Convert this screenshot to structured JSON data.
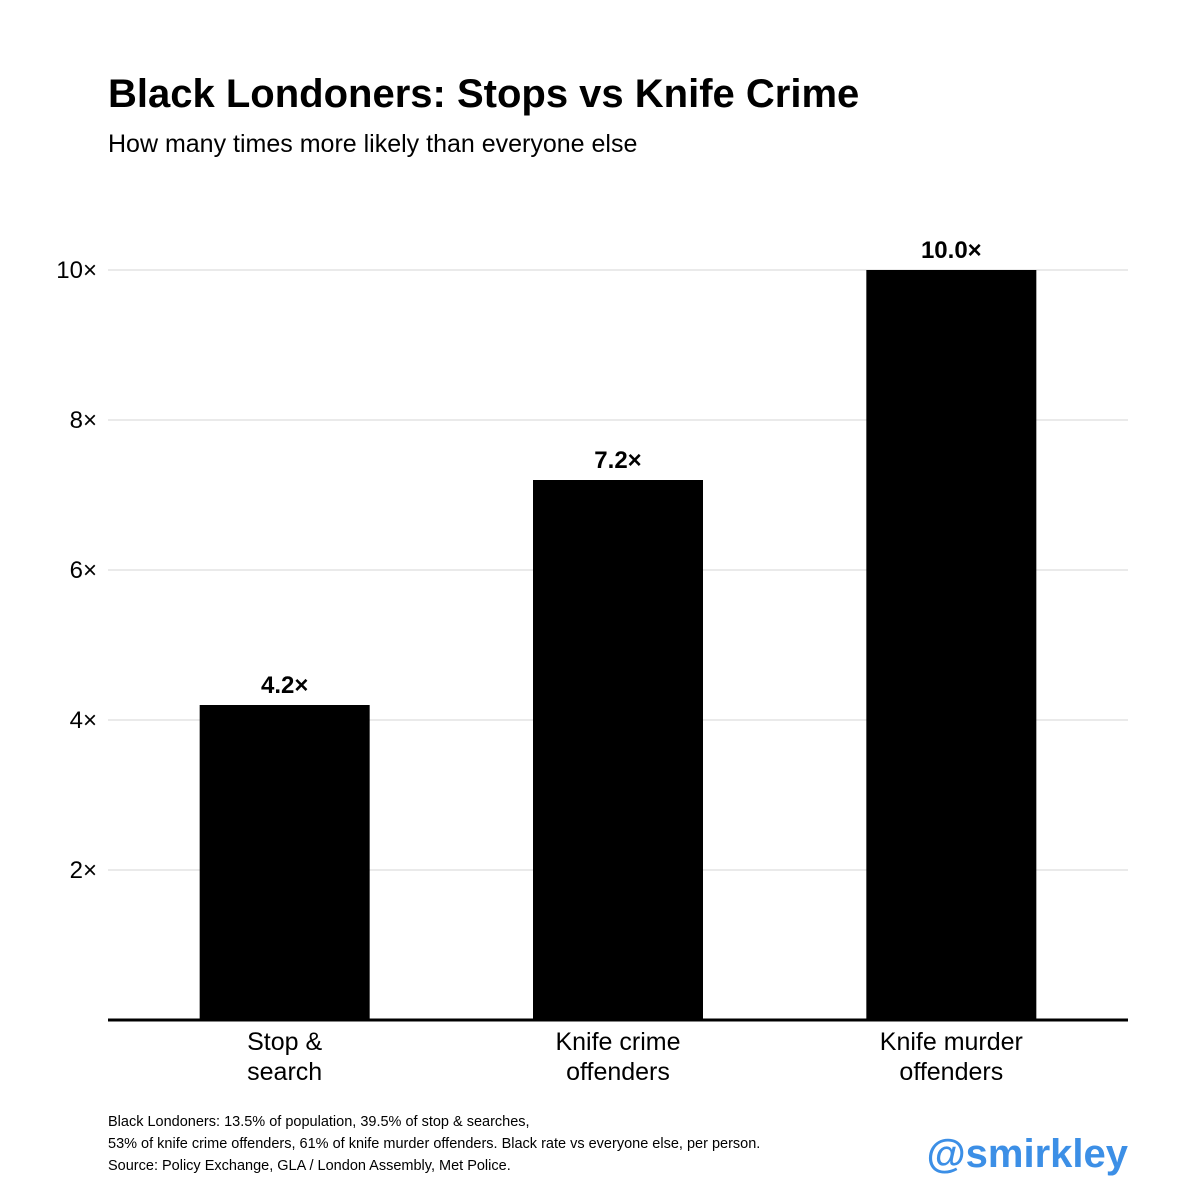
{
  "chart_data": {
    "type": "bar",
    "title": "Black Londoners: Stops vs Knife Crime",
    "subtitle": "How many times more likely than everyone else",
    "categories": [
      [
        "Stop &",
        "search"
      ],
      [
        "Knife crime",
        "offenders"
      ],
      [
        "Knife murder",
        "offenders"
      ]
    ],
    "values": [
      4.2,
      7.2,
      10.0
    ],
    "value_labels": [
      "4.2×",
      "7.2×",
      "10.0×"
    ],
    "ylim": [
      0,
      10.7
    ],
    "yticks": [
      2,
      4,
      6,
      8,
      10
    ],
    "ytick_labels": [
      "2×",
      "4×",
      "6×",
      "8×",
      "10×"
    ],
    "grid": true,
    "bar_color": "#000000",
    "grid_color": "#e3e3e3"
  },
  "footnote": {
    "lines": [
      "Black Londoners: 13.5% of population, 39.5% of stop & searches,",
      "53% of knife crime offenders, 61% of knife murder offenders. Black rate vs everyone else, per person.",
      "Source: Policy Exchange, GLA / London Assembly, Met Police."
    ]
  },
  "watermark": {
    "handle": "@smirkley",
    "color": "#3c8fe6"
  }
}
